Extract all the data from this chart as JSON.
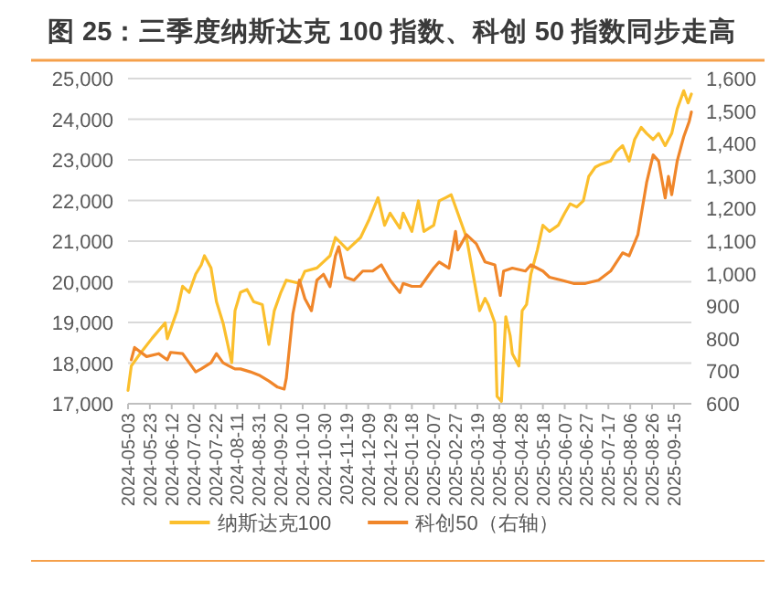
{
  "chart_data": {
    "type": "line",
    "title": "图 25：三季度纳斯达克 100 指数、科创 50 指数同步走高",
    "xlim": [
      "2024-05-03",
      "2025-10-01"
    ],
    "xticks": [
      "2024-05-03",
      "2024-05-23",
      "2024-06-12",
      "2024-07-02",
      "2024-07-22",
      "2024-08-11",
      "2024-08-31",
      "2024-09-20",
      "2024-10-10",
      "2024-10-30",
      "2024-11-19",
      "2024-12-09",
      "2024-12-29",
      "2025-01-18",
      "2025-02-07",
      "2025-02-27",
      "2025-03-19",
      "2025-04-08",
      "2025-04-28",
      "2025-05-18",
      "2025-06-07",
      "2025-06-27",
      "2025-07-17",
      "2025-08-06",
      "2025-08-26",
      "2025-09-15"
    ],
    "ylim": [
      17000,
      25000
    ],
    "yticks": [
      {
        "value": 17000,
        "label": "17,000"
      },
      {
        "value": 18000,
        "label": "18,000"
      },
      {
        "value": 19000,
        "label": "19,000"
      },
      {
        "value": 20000,
        "label": "20,000"
      },
      {
        "value": 21000,
        "label": "21,000"
      },
      {
        "value": 22000,
        "label": "22,000"
      },
      {
        "value": 23000,
        "label": "23,000"
      },
      {
        "value": 24000,
        "label": "24,000"
      },
      {
        "value": 25000,
        "label": "25,000"
      }
    ],
    "y2lim": [
      600,
      1600
    ],
    "y2ticks": [
      600,
      700,
      800,
      900,
      {
        "value": 1000,
        "label": "1,000"
      },
      {
        "value": 1100,
        "label": "1,100"
      },
      {
        "value": 1200,
        "label": "1,200"
      },
      {
        "value": 1300,
        "label": "1,300"
      },
      {
        "value": 1400,
        "label": "1,400"
      },
      {
        "value": 1500,
        "label": "1,500"
      },
      {
        "value": 1600,
        "label": "1,600"
      }
    ],
    "grid": "y",
    "legend": "bottom",
    "series": [
      {
        "name": "纳斯达克100",
        "color": "#fbbf2d",
        "x": [
          "2024-05-03",
          "2024-05-06",
          "2024-05-14",
          "2024-05-25",
          "2024-06-06",
          "2024-06-08",
          "2024-06-17",
          "2024-06-22",
          "2024-06-28",
          "2024-07-04",
          "2024-07-09",
          "2024-07-12",
          "2024-07-18",
          "2024-07-23",
          "2024-07-29",
          "2024-08-03",
          "2024-08-06",
          "2024-08-09",
          "2024-08-14",
          "2024-08-20",
          "2024-08-26",
          "2024-09-03",
          "2024-09-09",
          "2024-09-14",
          "2024-09-20",
          "2024-09-25",
          "2024-10-07",
          "2024-10-12",
          "2024-10-23",
          "2024-11-04",
          "2024-11-09",
          "2024-11-20",
          "2024-12-02",
          "2024-12-10",
          "2024-12-18",
          "2024-12-24",
          "2024-12-29",
          "2025-01-07",
          "2025-01-10",
          "2025-01-18",
          "2025-01-24",
          "2025-01-29",
          "2025-02-07",
          "2025-02-12",
          "2025-02-18",
          "2025-02-23",
          "2025-03-01",
          "2025-03-09",
          "2025-03-15",
          "2025-03-21",
          "2025-03-26",
          "2025-03-29",
          "2025-04-04",
          "2025-04-06",
          "2025-04-10",
          "2025-04-14",
          "2025-04-18",
          "2025-04-20",
          "2025-04-26",
          "2025-04-29",
          "2025-05-03",
          "2025-05-07",
          "2025-05-13",
          "2025-05-18",
          "2025-05-24",
          "2025-06-01",
          "2025-06-07",
          "2025-06-12",
          "2025-06-18",
          "2025-06-24",
          "2025-06-29",
          "2025-07-05",
          "2025-07-10",
          "2025-07-19",
          "2025-07-24",
          "2025-07-30",
          "2025-08-05",
          "2025-08-10",
          "2025-08-16",
          "2025-08-21",
          "2025-08-27",
          "2025-09-01",
          "2025-09-07",
          "2025-09-13",
          "2025-09-18",
          "2025-09-24",
          "2025-09-28",
          "2025-10-01"
        ],
        "values": [
          17330,
          17930,
          18230,
          18610,
          18990,
          18600,
          19290,
          19890,
          19740,
          20190,
          20410,
          20640,
          20340,
          19510,
          18990,
          18380,
          18010,
          19290,
          19740,
          19810,
          19510,
          19440,
          18460,
          19290,
          19740,
          20040,
          19960,
          20260,
          20340,
          20640,
          21090,
          20790,
          21090,
          21540,
          22070,
          21390,
          21690,
          21320,
          21690,
          21240,
          21990,
          21240,
          21390,
          21990,
          22070,
          22140,
          21690,
          21090,
          20190,
          19290,
          19590,
          19440,
          18990,
          17180,
          17060,
          19140,
          18680,
          18230,
          17930,
          19290,
          19440,
          20190,
          20790,
          21390,
          21240,
          21390,
          21690,
          21920,
          21840,
          21990,
          22590,
          22820,
          22890,
          22970,
          23200,
          23350,
          22970,
          23500,
          23800,
          23650,
          23500,
          23650,
          23350,
          23650,
          24250,
          24700,
          24400,
          24620
        ]
      },
      {
        "name": "科创50（右轴）",
        "color": "#f0862a",
        "axis": "y2",
        "x": [
          "2024-05-06",
          "2024-05-09",
          "2024-05-20",
          "2024-05-31",
          "2024-06-08",
          "2024-06-11",
          "2024-06-22",
          "2024-06-28",
          "2024-07-04",
          "2024-07-09",
          "2024-07-18",
          "2024-07-23",
          "2024-07-29",
          "2024-08-03",
          "2024-08-09",
          "2024-08-14",
          "2024-08-23",
          "2024-08-31",
          "2024-09-09",
          "2024-09-17",
          "2024-09-23",
          "2024-09-25",
          "2024-10-01",
          "2024-10-07",
          "2024-10-12",
          "2024-10-18",
          "2024-10-23",
          "2024-10-29",
          "2024-11-04",
          "2024-11-09",
          "2024-11-12",
          "2024-11-18",
          "2024-11-26",
          "2024-12-04",
          "2024-12-13",
          "2024-12-21",
          "2024-12-29",
          "2025-01-07",
          "2025-01-10",
          "2025-01-18",
          "2025-01-26",
          "2025-02-07",
          "2025-02-12",
          "2025-02-21",
          "2025-02-27",
          "2025-03-01",
          "2025-03-09",
          "2025-03-18",
          "2025-03-26",
          "2025-04-04",
          "2025-04-09",
          "2025-04-12",
          "2025-04-20",
          "2025-05-02",
          "2025-05-07",
          "2025-05-18",
          "2025-05-24",
          "2025-06-04",
          "2025-06-15",
          "2025-06-26",
          "2025-07-08",
          "2025-07-19",
          "2025-07-30",
          "2025-08-05",
          "2025-08-13",
          "2025-08-21",
          "2025-08-27",
          "2025-09-01",
          "2025-09-07",
          "2025-09-10",
          "2025-09-13",
          "2025-09-18",
          "2025-09-24",
          "2025-09-29",
          "2025-10-01"
        ],
        "values": [
          735,
          773,
          745,
          754,
          735,
          758,
          754,
          726,
          698,
          707,
          726,
          754,
          726,
          717,
          707,
          707,
          698,
          688,
          670,
          651,
          645,
          679,
          876,
          980,
          923,
          886,
          980,
          998,
          960,
          1055,
          1083,
          989,
          980,
          1008,
          1008,
          1027,
          980,
          942,
          970,
          961,
          961,
          1017,
          1036,
          1017,
          1130,
          1073,
          1120,
          1092,
          1036,
          1027,
          933,
          1008,
          1017,
          1008,
          1027,
          1008,
          989,
          980,
          970,
          970,
          980,
          1008,
          1064,
          1055,
          1120,
          1280,
          1365,
          1346,
          1233,
          1299,
          1243,
          1346,
          1421,
          1468,
          1497
        ]
      }
    ]
  }
}
